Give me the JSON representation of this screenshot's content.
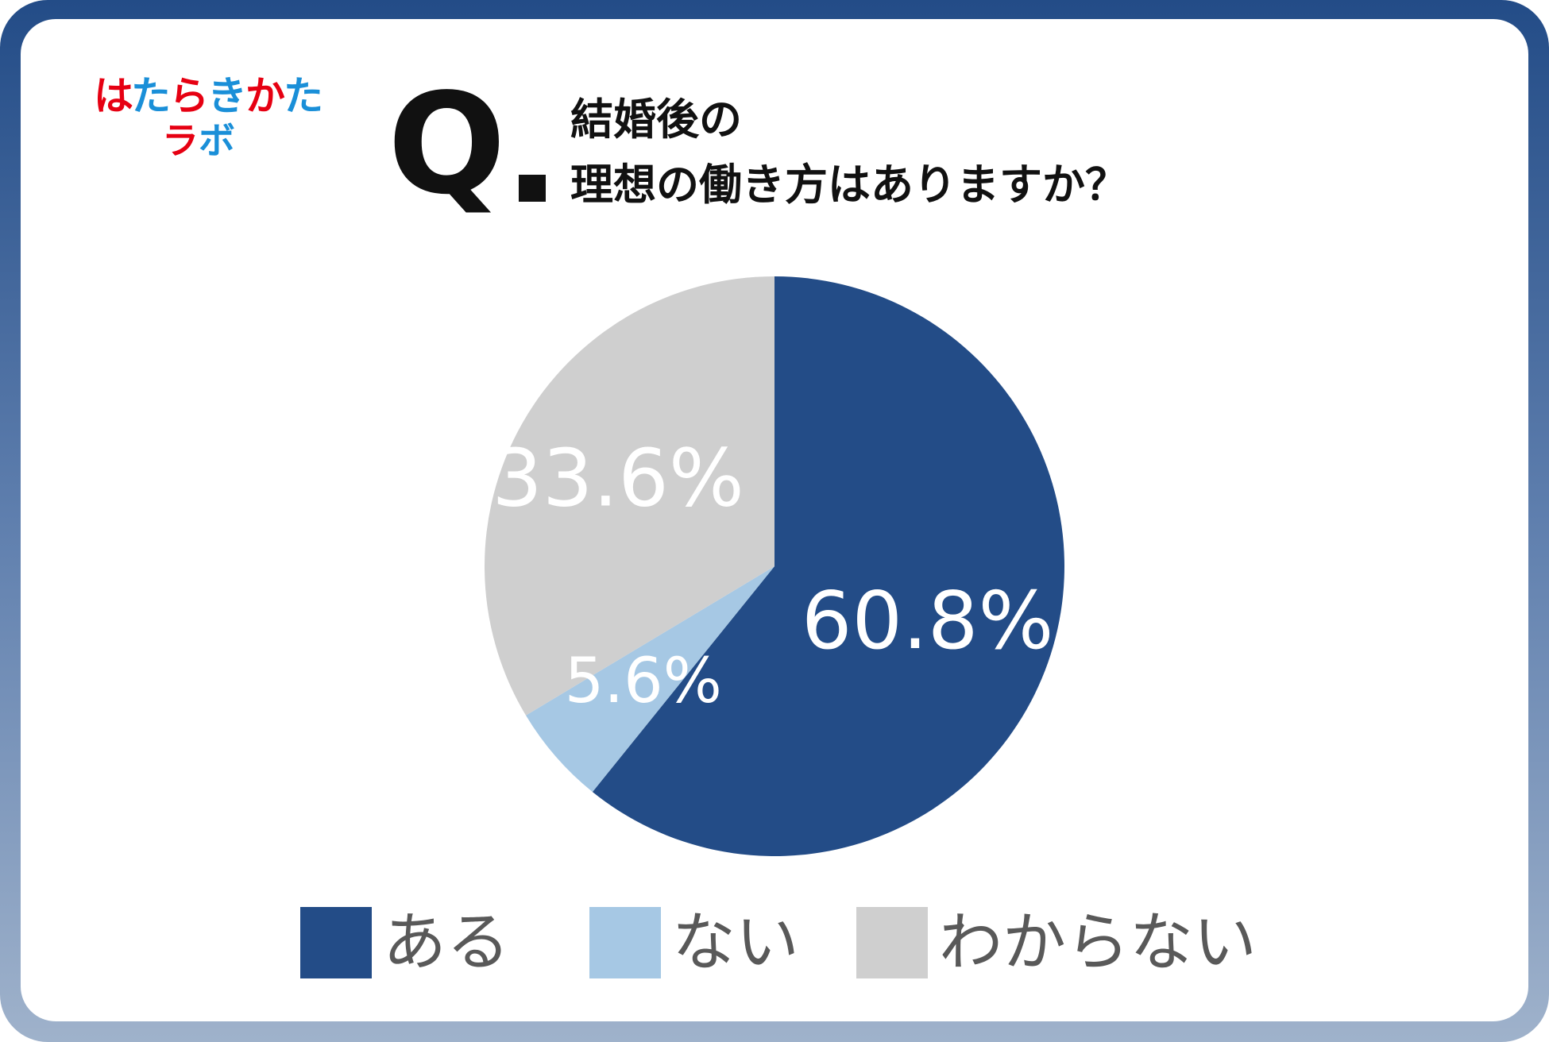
{
  "logo": {
    "line1": [
      {
        "ch": "は",
        "color": "#e60012"
      },
      {
        "ch": "た",
        "color": "#1a8fd8"
      },
      {
        "ch": "ら",
        "color": "#e60012"
      },
      {
        "ch": "き",
        "color": "#1a8fd8"
      },
      {
        "ch": "か",
        "color": "#e60012"
      },
      {
        "ch": "た",
        "color": "#1a8fd8"
      }
    ],
    "line2": [
      {
        "ch": "ラ",
        "color": "#e60012"
      },
      {
        "ch": "ボ",
        "color": "#1a8fd8"
      }
    ]
  },
  "question": {
    "prefix": "Q",
    "line1": "結婚後の",
    "line2": "理想の働き方はありますか？"
  },
  "chart_data": {
    "type": "pie",
    "start_angle_deg": 0,
    "direction": "clockwise",
    "slices": [
      {
        "label": "ある",
        "value": 60.8,
        "display": "60.8%",
        "color": "#234c87"
      },
      {
        "label": "ない",
        "value": 5.6,
        "display": "5.6%",
        "color": "#a6c8e4"
      },
      {
        "label": "わからない",
        "value": 33.6,
        "display": "33.6%",
        "color": "#cfcfcf"
      }
    ],
    "legend_position": "bottom"
  }
}
